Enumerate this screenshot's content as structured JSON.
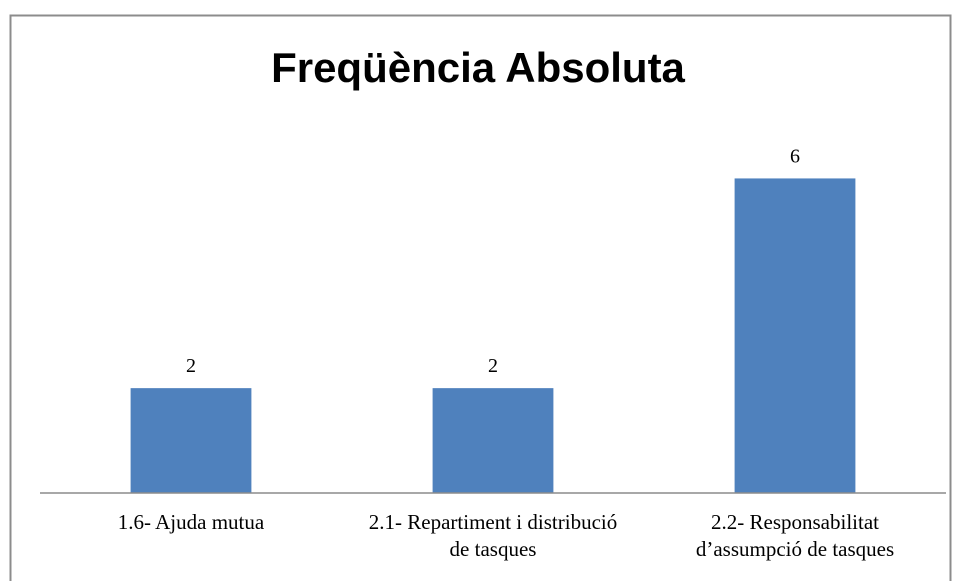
{
  "chart_data": {
    "type": "bar",
    "title": "Freqüència Absoluta",
    "categories": [
      "1.6- Ajuda mutua",
      "2.1- Repartiment i distribució de tasques",
      "2.2- Responsabilitat d’assumpció de tasques"
    ],
    "values": [
      2,
      2,
      6
    ],
    "color": "#4f81bd",
    "ylim": [
      0,
      7
    ]
  }
}
